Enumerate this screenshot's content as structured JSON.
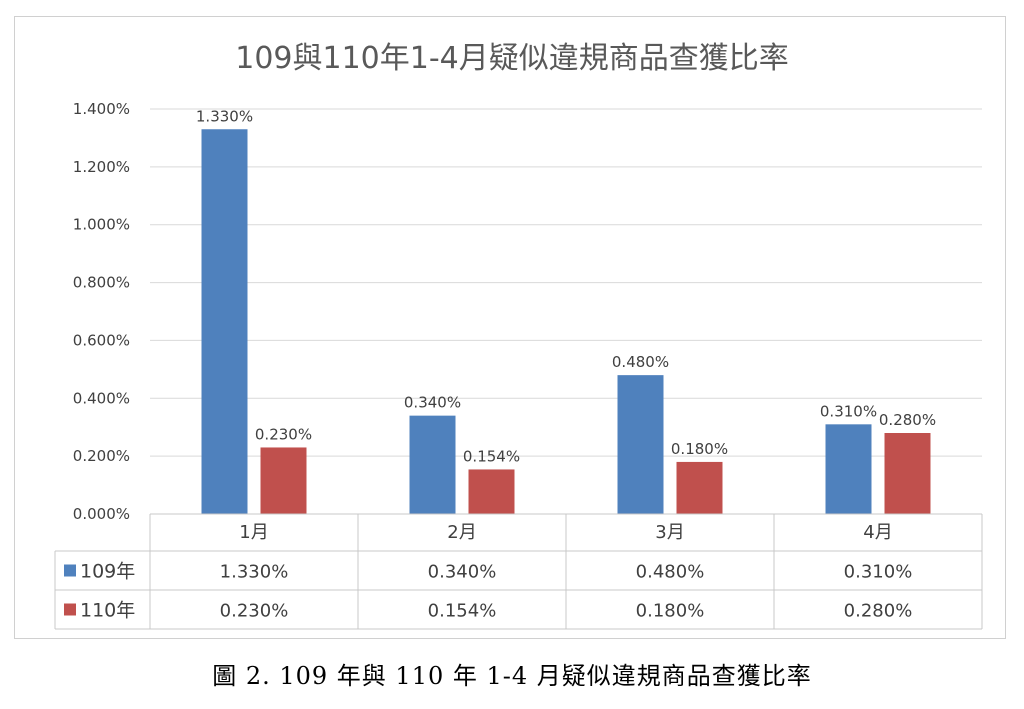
{
  "caption": "圖 2. 109 年與 110 年 1-4 月疑似違規商品查獲比率",
  "colors": {
    "s0": "#4f81bd",
    "s1": "#c0504d"
  },
  "chart_data": {
    "type": "bar",
    "title": "109與110年1-4月疑似違規商品查獲比率",
    "categories": [
      "1月",
      "2月",
      "3月",
      "4月"
    ],
    "series": [
      {
        "name": "109年",
        "values": [
          1.33,
          0.34,
          0.48,
          0.31
        ],
        "labels": [
          "1.330%",
          "0.340%",
          "0.480%",
          "0.310%"
        ]
      },
      {
        "name": "110年",
        "values": [
          0.23,
          0.154,
          0.18,
          0.28
        ],
        "labels": [
          "0.230%",
          "0.154%",
          "0.180%",
          "0.280%"
        ]
      }
    ],
    "ylim": [
      0,
      1.4
    ],
    "yticks": [
      "0.000%",
      "0.200%",
      "0.400%",
      "0.600%",
      "0.800%",
      "1.000%",
      "1.200%",
      "1.400%"
    ],
    "grid": true,
    "legend": "data-table"
  }
}
